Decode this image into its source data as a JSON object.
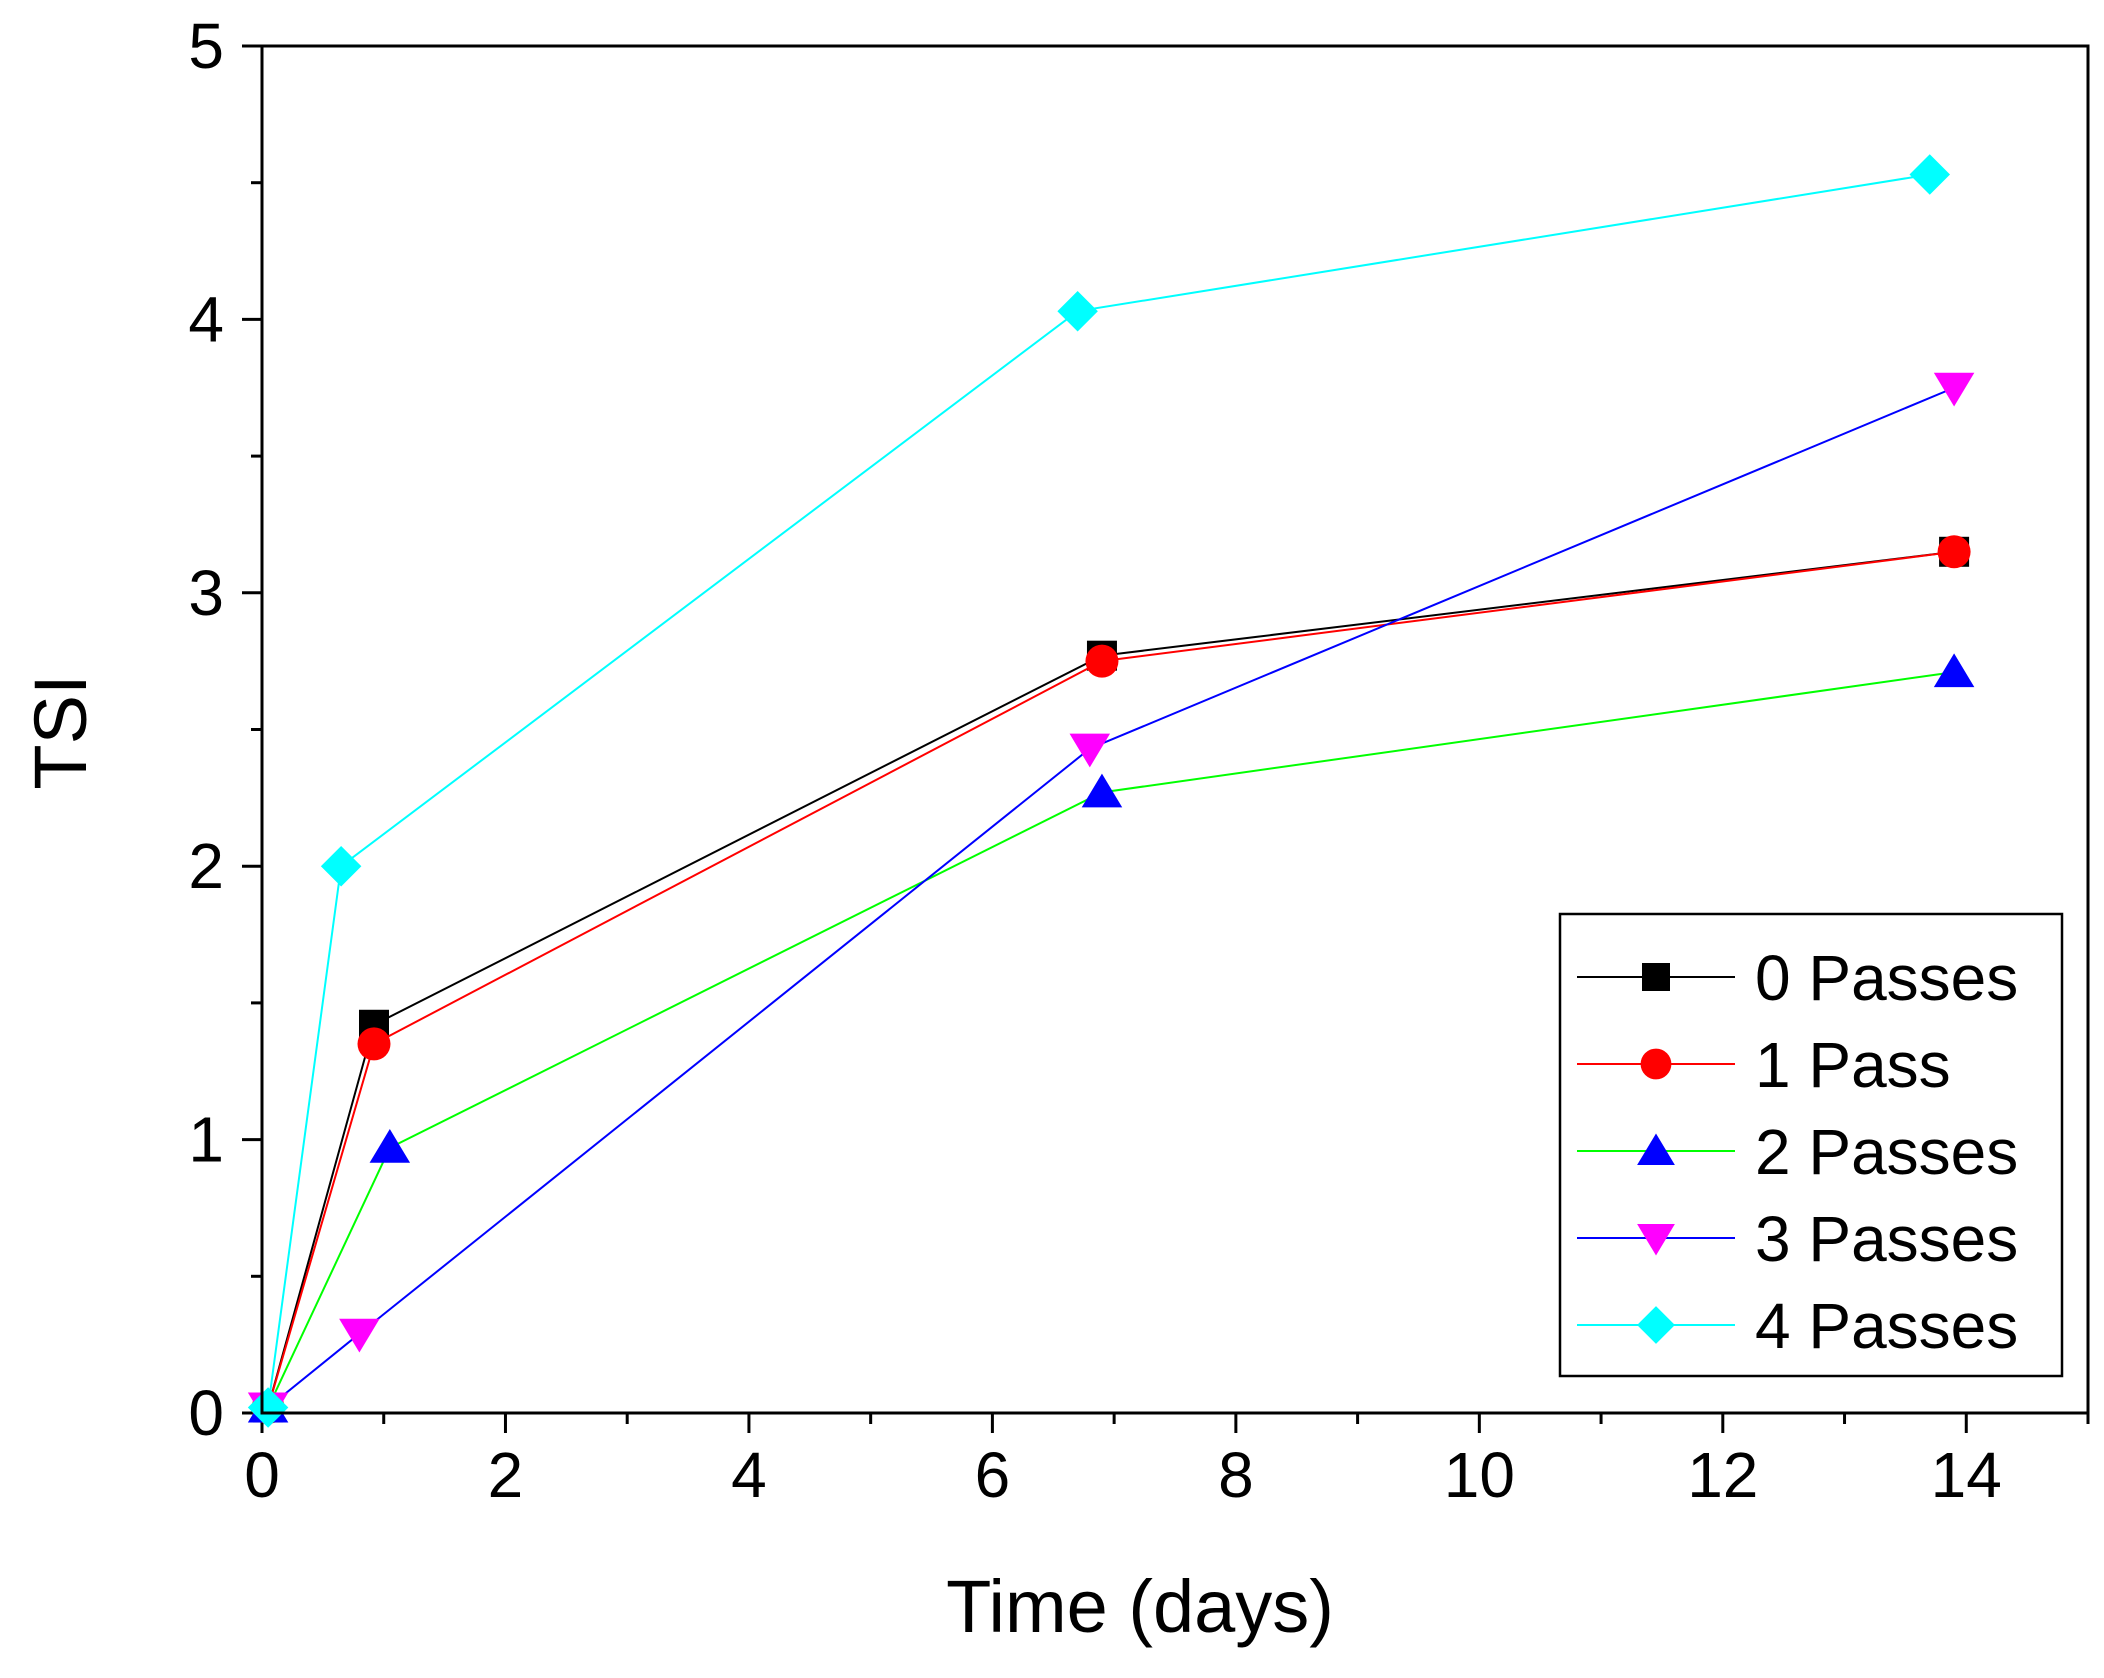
{
  "chart_data": {
    "type": "line",
    "title": "",
    "xlabel": "Time (days)",
    "ylabel": "TSI",
    "xlim": [
      0,
      15
    ],
    "ylim": [
      0,
      5
    ],
    "xticks": [
      0,
      2,
      4,
      6,
      8,
      10,
      12,
      14
    ],
    "yticks": [
      0,
      1,
      2,
      3,
      4,
      5
    ],
    "x_minor_step": 1,
    "y_minor_step": 0.5,
    "grid": false,
    "legend_position": "bottom-right",
    "series": [
      {
        "name": "0 Passes",
        "color": "#000000",
        "marker": "square",
        "x": [
          0.05,
          0.92,
          6.9,
          13.9
        ],
        "y": [
          0.02,
          1.42,
          2.77,
          3.15
        ]
      },
      {
        "name": "1 Pass",
        "color": "#ff0000",
        "marker": "circle",
        "x": [
          0.05,
          0.92,
          6.9,
          13.9
        ],
        "y": [
          0.02,
          1.35,
          2.75,
          3.15
        ]
      },
      {
        "name": "2 Passes",
        "color": "#00ff00",
        "marker_color": "#0000ff",
        "marker": "triangle-up",
        "x": [
          0.05,
          1.05,
          6.9,
          13.9
        ],
        "y": [
          0.02,
          0.97,
          2.27,
          2.71
        ]
      },
      {
        "name": "3 Passes",
        "color": "#0000ff",
        "marker_color": "#ff00ff",
        "marker": "triangle-down",
        "x": [
          0.05,
          0.8,
          6.8,
          13.9
        ],
        "y": [
          0.02,
          0.29,
          2.43,
          3.75
        ]
      },
      {
        "name": "4 Passes",
        "color": "#00ffff",
        "marker": "diamond",
        "x": [
          0.05,
          0.65,
          6.7,
          13.7
        ],
        "y": [
          0.02,
          2.0,
          4.03,
          4.53
        ]
      }
    ]
  }
}
